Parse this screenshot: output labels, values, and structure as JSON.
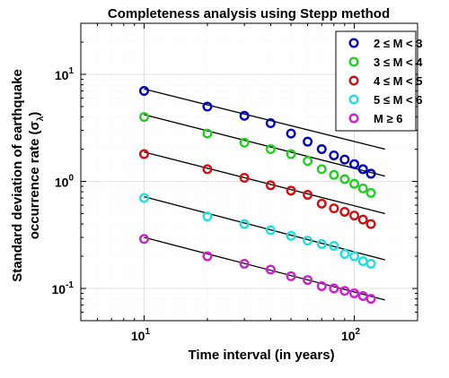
{
  "chart_data": {
    "type": "scatter",
    "title": "Completeness analysis using Stepp method",
    "xlabel": "Time interval (in years)",
    "ylabel_line1": "Standard deviation of earthquake",
    "ylabel_line2": "occurrence rate (σ",
    "ylabel_sub": "λ",
    "ylabel_end": ")",
    "xscale": "log",
    "yscale": "log",
    "xlim": [
      5,
      200
    ],
    "ylim": [
      0.05,
      30
    ],
    "x_ticks": [
      {
        "base": "10",
        "exp": "1",
        "value": 10
      },
      {
        "base": "10",
        "exp": "2",
        "value": 100
      }
    ],
    "y_ticks": [
      {
        "base": "10",
        "exp": "-1",
        "value": 0.1
      },
      {
        "base": "10",
        "exp": "0",
        "value": 1
      },
      {
        "base": "10",
        "exp": "1",
        "value": 10
      }
    ],
    "grid": true,
    "legend_position": "top-right",
    "x": [
      10,
      20,
      30,
      40,
      50,
      60,
      70,
      80,
      90,
      100,
      110,
      120
    ],
    "series": [
      {
        "name": "2 ≤ M < 3",
        "color": "#0000bf",
        "values": [
          7.0,
          5.0,
          4.1,
          3.5,
          2.8,
          2.35,
          2.0,
          1.75,
          1.6,
          1.45,
          1.3,
          1.18
        ],
        "fit_line": {
          "x": [
            10,
            140
          ],
          "y": [
            7.3,
            2.0
          ]
        }
      },
      {
        "name": "3 ≤ M < 4",
        "color": "#22d022",
        "values": [
          4.0,
          2.8,
          2.3,
          2.0,
          1.8,
          1.55,
          1.3,
          1.15,
          1.05,
          0.95,
          0.86,
          0.78
        ],
        "fit_line": {
          "x": [
            10,
            140
          ],
          "y": [
            4.2,
            1.12
          ]
        }
      },
      {
        "name": "4 ≤ M < 5",
        "color": "#d01010",
        "values": [
          1.8,
          1.3,
          1.08,
          0.92,
          0.82,
          0.75,
          0.62,
          0.56,
          0.52,
          0.48,
          0.44,
          0.4
        ],
        "fit_line": {
          "x": [
            10,
            140
          ],
          "y": [
            1.88,
            0.5
          ]
        }
      },
      {
        "name": "5 ≤ M < 6",
        "color": "#1fe0e0",
        "values": [
          0.7,
          0.47,
          0.4,
          0.35,
          0.31,
          0.28,
          0.26,
          0.25,
          0.21,
          0.2,
          0.18,
          0.17
        ],
        "fit_line": {
          "x": [
            10,
            140
          ],
          "y": [
            0.72,
            0.185
          ]
        }
      },
      {
        "name": "M ≥ 6",
        "color": "#d020d0",
        "values": [
          0.29,
          0.2,
          0.17,
          0.15,
          0.13,
          0.12,
          0.105,
          0.1,
          0.095,
          0.09,
          0.085,
          0.08
        ],
        "fit_line": {
          "x": [
            10,
            140
          ],
          "y": [
            0.3,
            0.078
          ]
        }
      }
    ]
  }
}
